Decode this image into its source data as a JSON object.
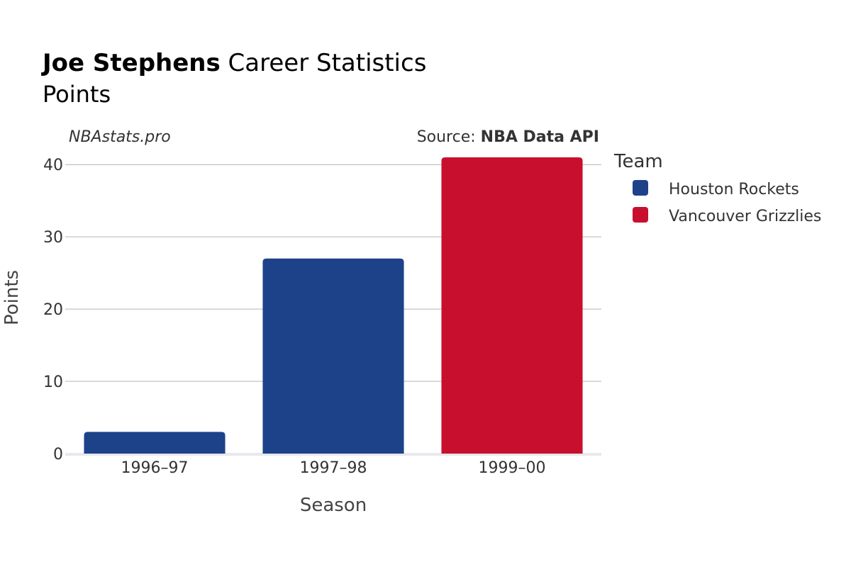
{
  "header": {
    "player_name": "Joe Stephens",
    "title_rest": " Career Statistics",
    "subtitle": "Points"
  },
  "annotations": {
    "site": "NBAstats.pro",
    "source_prefix": "Source: ",
    "source_name": "NBA Data API"
  },
  "legend": {
    "title": "Team",
    "items": [
      {
        "label": "Houston Rockets",
        "color": "#1d428a"
      },
      {
        "label": "Vancouver Grizzlies",
        "color": "#c8102e"
      }
    ]
  },
  "chart_data": {
    "type": "bar",
    "categories": [
      "1996–97",
      "1997–98",
      "1999–00"
    ],
    "values": [
      3,
      27,
      41
    ],
    "teams": [
      "Houston Rockets",
      "Houston Rockets",
      "Vancouver Grizzlies"
    ],
    "colors": [
      "#1d428a",
      "#1d428a",
      "#c8102e"
    ],
    "xlabel": "Season",
    "ylabel": "Points",
    "ylim": [
      0,
      41
    ],
    "yticks": [
      0,
      10,
      20,
      30,
      40
    ],
    "grid": true
  }
}
